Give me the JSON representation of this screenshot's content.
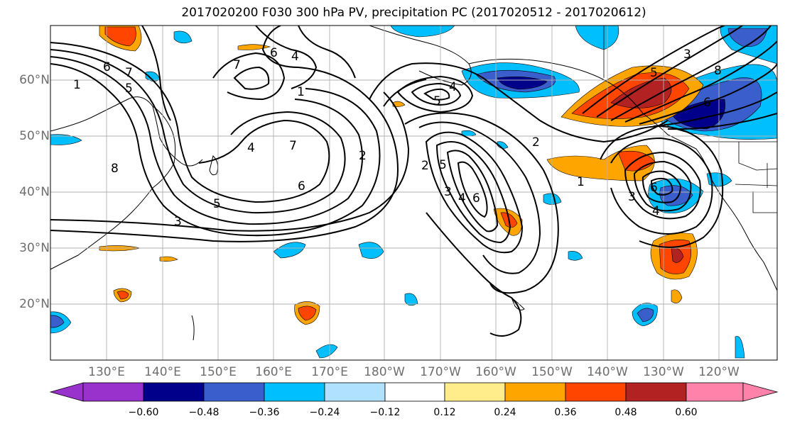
{
  "title": "2017020200 F030 300 hPa PV, precipitation PC (2017020512 - 2017020612)",
  "latitude_labels": [
    "60°N",
    "50°N",
    "40°N",
    "30°N",
    "20°N"
  ],
  "longitude_labels": [
    "130°E",
    "140°E",
    "150°E",
    "160°E",
    "170°E",
    "180°W",
    "170°W",
    "160°W",
    "150°W",
    "140°W",
    "130°W",
    "120°W"
  ],
  "pv_contour_labels": [
    "1",
    "2",
    "3",
    "4",
    "5",
    "6",
    "7",
    "8"
  ],
  "colorbar": {
    "tick_labels": [
      "−0.60",
      "−0.48",
      "−0.36",
      "−0.24",
      "−0.12",
      "0.12",
      "0.24",
      "0.36",
      "0.48",
      "0.60"
    ],
    "colors": [
      "#9932cc",
      "#00008b",
      "#3a5fcd",
      "#00bfff",
      "#b0e2ff",
      "#ffffff",
      "#ffec8b",
      "#ffa500",
      "#ff4500",
      "#b22222",
      "#ff82ab"
    ]
  }
}
